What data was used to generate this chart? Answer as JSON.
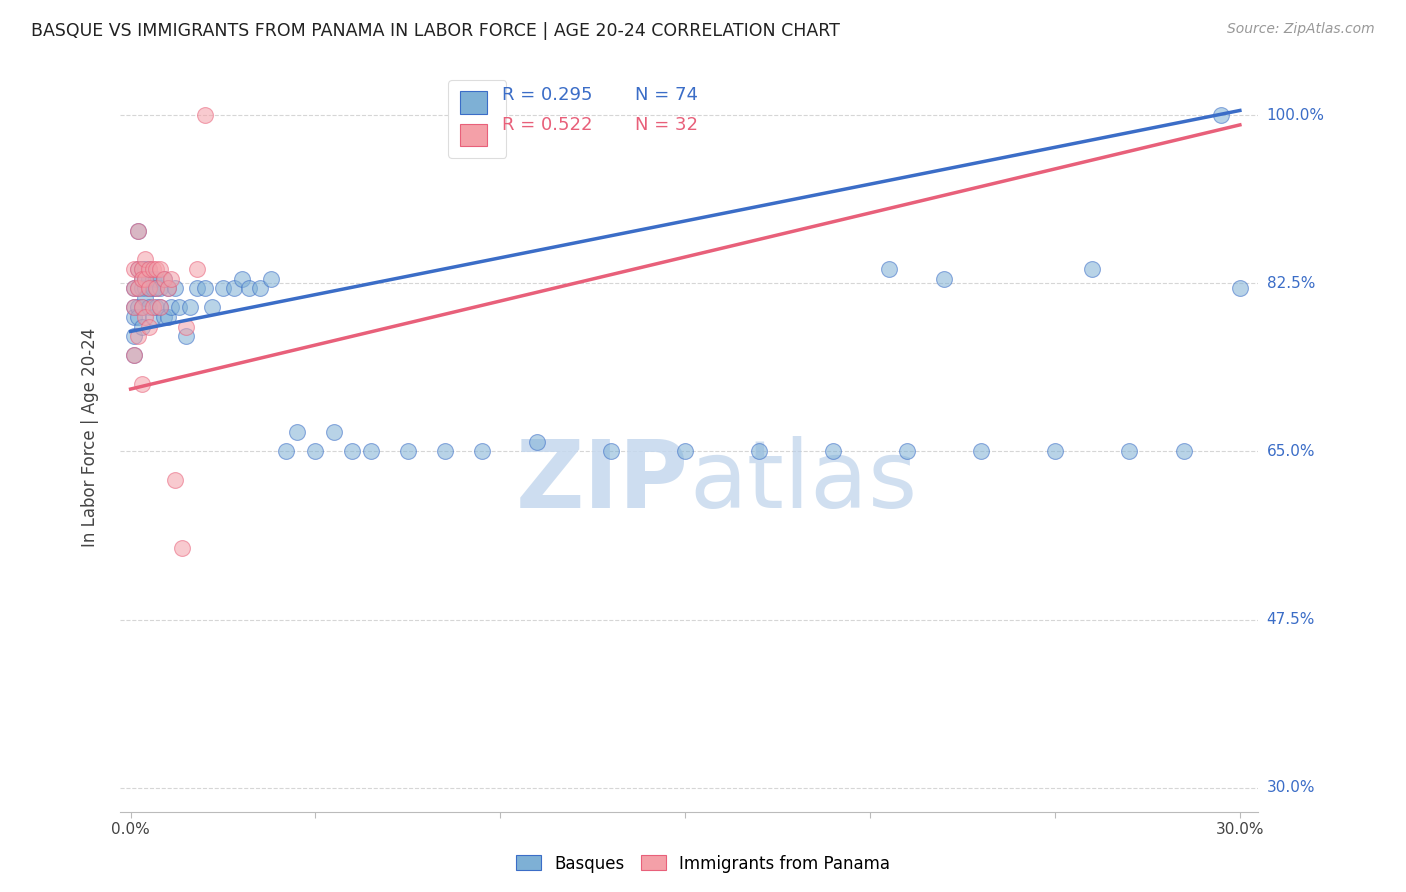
{
  "title": "BASQUE VS IMMIGRANTS FROM PANAMA IN LABOR FORCE | AGE 20-24 CORRELATION CHART",
  "source": "Source: ZipAtlas.com",
  "ylabel": "In Labor Force | Age 20-24",
  "xlim": [
    -0.003,
    0.305
  ],
  "ylim": [
    0.275,
    1.055
  ],
  "xticks": [
    0.0,
    0.05,
    0.1,
    0.15,
    0.2,
    0.25,
    0.3
  ],
  "xticklabels": [
    "0.0%",
    "",
    "",
    "",
    "",
    "",
    "30.0%"
  ],
  "yticks": [
    0.3,
    0.475,
    0.65,
    0.825,
    1.0
  ],
  "yticklabels": [
    "30.0%",
    "47.5%",
    "65.0%",
    "82.5%",
    "100.0%"
  ],
  "blue_color": "#7EB0D5",
  "pink_color": "#F4A0A8",
  "line_blue": "#3B6DC7",
  "line_pink": "#E8607A",
  "legend_label_blue": "Basques",
  "legend_label_pink": "Immigrants from Panama",
  "watermark_zip": "ZIP",
  "watermark_atlas": "atlas",
  "background_color": "#FFFFFF",
  "grid_color": "#CCCCCC",
  "title_color": "#222222",
  "axis_label_color": "#444444",
  "tick_color_y": "#3B6DC7",
  "blue_line_y0": 0.775,
  "blue_line_y1": 1.005,
  "pink_line_y0": 0.715,
  "pink_line_y1": 0.99,
  "basque_x": [
    0.001,
    0.001,
    0.001,
    0.001,
    0.001,
    0.002,
    0.002,
    0.002,
    0.002,
    0.002,
    0.003,
    0.003,
    0.003,
    0.003,
    0.003,
    0.003,
    0.004,
    0.004,
    0.004,
    0.004,
    0.005,
    0.005,
    0.005,
    0.005,
    0.006,
    0.006,
    0.006,
    0.007,
    0.007,
    0.007,
    0.008,
    0.008,
    0.009,
    0.009,
    0.01,
    0.01,
    0.011,
    0.012,
    0.013,
    0.015,
    0.016,
    0.018,
    0.02,
    0.022,
    0.025,
    0.028,
    0.03,
    0.032,
    0.035,
    0.038,
    0.042,
    0.045,
    0.05,
    0.055,
    0.06,
    0.065,
    0.075,
    0.085,
    0.095,
    0.11,
    0.13,
    0.15,
    0.17,
    0.19,
    0.21,
    0.23,
    0.25,
    0.27,
    0.285,
    0.295,
    0.3,
    0.205,
    0.22,
    0.26
  ],
  "basque_y": [
    0.8,
    0.82,
    0.79,
    0.75,
    0.77,
    0.88,
    0.8,
    0.84,
    0.82,
    0.79,
    0.84,
    0.84,
    0.83,
    0.82,
    0.8,
    0.78,
    0.84,
    0.83,
    0.82,
    0.81,
    0.84,
    0.82,
    0.83,
    0.8,
    0.83,
    0.82,
    0.79,
    0.83,
    0.82,
    0.8,
    0.82,
    0.8,
    0.83,
    0.79,
    0.82,
    0.79,
    0.8,
    0.82,
    0.8,
    0.77,
    0.8,
    0.82,
    0.82,
    0.8,
    0.82,
    0.82,
    0.83,
    0.82,
    0.82,
    0.83,
    0.65,
    0.67,
    0.65,
    0.67,
    0.65,
    0.65,
    0.65,
    0.65,
    0.65,
    0.66,
    0.65,
    0.65,
    0.65,
    0.65,
    0.65,
    0.65,
    0.65,
    0.65,
    0.65,
    1.0,
    0.82,
    0.84,
    0.83,
    0.84
  ],
  "panama_x": [
    0.001,
    0.001,
    0.001,
    0.001,
    0.002,
    0.002,
    0.002,
    0.002,
    0.003,
    0.003,
    0.003,
    0.003,
    0.004,
    0.004,
    0.004,
    0.005,
    0.005,
    0.005,
    0.006,
    0.006,
    0.007,
    0.007,
    0.008,
    0.008,
    0.009,
    0.01,
    0.011,
    0.012,
    0.014,
    0.015,
    0.018,
    0.02
  ],
  "panama_y": [
    0.84,
    0.82,
    0.8,
    0.75,
    0.88,
    0.84,
    0.82,
    0.77,
    0.84,
    0.83,
    0.8,
    0.72,
    0.85,
    0.83,
    0.79,
    0.84,
    0.82,
    0.78,
    0.84,
    0.8,
    0.84,
    0.82,
    0.84,
    0.8,
    0.83,
    0.82,
    0.83,
    0.62,
    0.55,
    0.78,
    0.84,
    1.0
  ]
}
